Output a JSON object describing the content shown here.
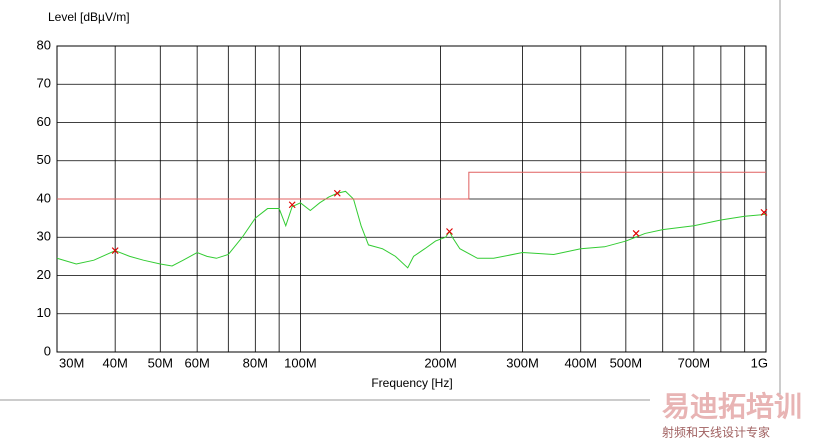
{
  "chart_data": {
    "type": "line",
    "title": "Level [dBµV/m]",
    "x_label": "Frequency [Hz]",
    "xscale": "log",
    "xlim": [
      30,
      1000
    ],
    "ylim": [
      0,
      80
    ],
    "xticks": [
      {
        "value": 30,
        "label": "30M"
      },
      {
        "value": 40,
        "label": "40M"
      },
      {
        "value": 50,
        "label": "50M"
      },
      {
        "value": 60,
        "label": "60M"
      },
      {
        "value": 80,
        "label": "80M"
      },
      {
        "value": 100,
        "label": "100M"
      },
      {
        "value": 200,
        "label": "200M"
      },
      {
        "value": 300,
        "label": "300M"
      },
      {
        "value": 400,
        "label": "400M"
      },
      {
        "value": 500,
        "label": "500M"
      },
      {
        "value": 700,
        "label": "700M"
      },
      {
        "value": 1000,
        "label": "1G"
      }
    ],
    "x_minor_grid": [
      70,
      90,
      600,
      800,
      900
    ],
    "yticks": [
      0,
      10,
      20,
      30,
      40,
      50,
      60,
      70,
      80
    ],
    "grid": true,
    "series": [
      {
        "style": "line",
        "color": "#33cc33",
        "x": [
          30,
          33,
          36,
          40,
          43,
          46,
          50,
          53,
          56,
          60,
          63,
          66,
          70,
          75,
          80,
          85,
          90,
          93,
          96,
          100,
          105,
          110,
          115,
          120,
          125,
          130,
          135,
          140,
          150,
          160,
          170,
          175,
          185,
          195,
          205,
          209,
          212,
          220,
          240,
          260,
          300,
          350,
          400,
          450,
          500,
          550,
          600,
          700,
          800,
          900,
          1000
        ],
        "values": [
          24.5,
          23,
          24,
          26.5,
          25,
          24,
          23,
          22.5,
          24,
          26,
          25,
          24.5,
          25.5,
          30,
          35,
          37.5,
          37.5,
          33,
          38,
          39,
          37,
          39,
          40.5,
          41.5,
          42,
          40,
          33,
          28,
          27,
          25,
          22,
          25,
          27,
          29,
          30,
          31.5,
          30,
          27,
          24.5,
          24.5,
          26,
          25.5,
          27,
          27.5,
          29,
          31,
          32,
          33,
          34.5,
          35.5,
          36
        ]
      },
      {
        "style": "line",
        "color": "#e06060",
        "x": [
          30,
          230,
          230,
          1000
        ],
        "values": [
          40,
          40,
          47,
          47
        ]
      },
      {
        "style": "markers",
        "color": "#e00000",
        "x": [
          40,
          96,
          120,
          209,
          526,
          990
        ],
        "values": [
          26.5,
          38.5,
          41.5,
          31.5,
          31,
          36.5
        ]
      }
    ]
  },
  "watermark": {
    "title": "易迪拓培训",
    "subtitle": "射频和天线设计专家"
  }
}
